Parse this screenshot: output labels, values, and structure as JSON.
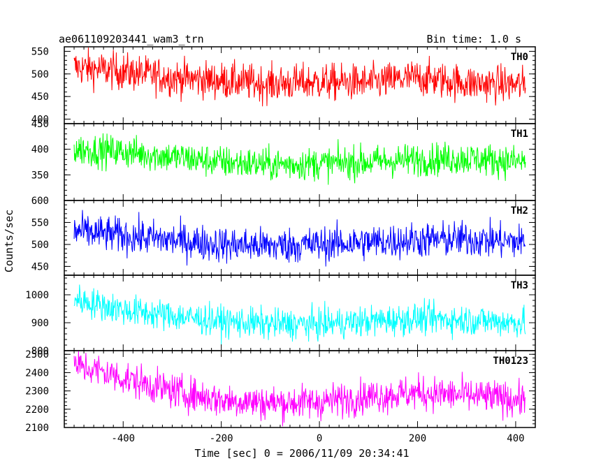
{
  "header": {
    "title": "ae061109203441_wam3_trn",
    "bin_time": "Bin time: 1.0 s"
  },
  "chart_data": {
    "type": "line",
    "xlabel": "Time [sec] 0 = 2006/11/09 20:34:41",
    "ylabel": "Counts/sec",
    "xlim": [
      -520,
      440
    ],
    "x_ticks": [
      -400,
      -200,
      0,
      200,
      400
    ],
    "x_range_data": [
      -500,
      420
    ],
    "bin_time_s": 1.0,
    "panels": [
      {
        "name": "TH0",
        "color": "#ff0000",
        "ylim": [
          390,
          560
        ],
        "y_ticks": [
          400,
          450,
          500,
          550
        ],
        "series_keypoints": [
          [
            -500,
            515
          ],
          [
            -400,
            505
          ],
          [
            -300,
            492
          ],
          [
            -200,
            485
          ],
          [
            -100,
            478
          ],
          [
            0,
            482
          ],
          [
            100,
            480
          ],
          [
            200,
            492
          ],
          [
            300,
            480
          ],
          [
            420,
            475
          ]
        ],
        "noise_amplitude": 28
      },
      {
        "name": "TH1",
        "color": "#00ff00",
        "ylim": [
          300,
          450
        ],
        "y_ticks": [
          350,
          400,
          450
        ],
        "series_keypoints": [
          [
            -500,
            400
          ],
          [
            -400,
            395
          ],
          [
            -300,
            385
          ],
          [
            -200,
            375
          ],
          [
            -100,
            370
          ],
          [
            0,
            372
          ],
          [
            100,
            375
          ],
          [
            200,
            380
          ],
          [
            300,
            382
          ],
          [
            420,
            375
          ]
        ],
        "noise_amplitude": 22
      },
      {
        "name": "TH2",
        "color": "#0000ff",
        "ylim": [
          430,
          600
        ],
        "y_ticks": [
          450,
          500,
          550,
          600
        ],
        "series_keypoints": [
          [
            -500,
            530
          ],
          [
            -400,
            520
          ],
          [
            -300,
            510
          ],
          [
            -200,
            500
          ],
          [
            -100,
            497
          ],
          [
            0,
            500
          ],
          [
            100,
            505
          ],
          [
            200,
            510
          ],
          [
            300,
            512
          ],
          [
            420,
            505
          ]
        ],
        "noise_amplitude": 28
      },
      {
        "name": "TH3",
        "color": "#00ffff",
        "ylim": [
          800,
          1070
        ],
        "y_ticks": [
          800,
          900,
          1000
        ],
        "series_keypoints": [
          [
            -500,
            985
          ],
          [
            -450,
            965
          ],
          [
            -400,
            945
          ],
          [
            -300,
            925
          ],
          [
            -200,
            905
          ],
          [
            -100,
            895
          ],
          [
            0,
            895
          ],
          [
            100,
            905
          ],
          [
            200,
            915
          ],
          [
            300,
            910
          ],
          [
            420,
            900
          ]
        ],
        "noise_amplitude": 38
      },
      {
        "name": "TH0123",
        "color": "#ff00ff",
        "ylim": [
          2100,
          2520
        ],
        "y_ticks": [
          2100,
          2200,
          2300,
          2400,
          2500
        ],
        "series_keypoints": [
          [
            -500,
            2440
          ],
          [
            -450,
            2410
          ],
          [
            -400,
            2370
          ],
          [
            -300,
            2300
          ],
          [
            -200,
            2250
          ],
          [
            -100,
            2235
          ],
          [
            0,
            2240
          ],
          [
            100,
            2270
          ],
          [
            200,
            2290
          ],
          [
            300,
            2275
          ],
          [
            420,
            2250
          ]
        ],
        "noise_amplitude": 65
      }
    ]
  }
}
